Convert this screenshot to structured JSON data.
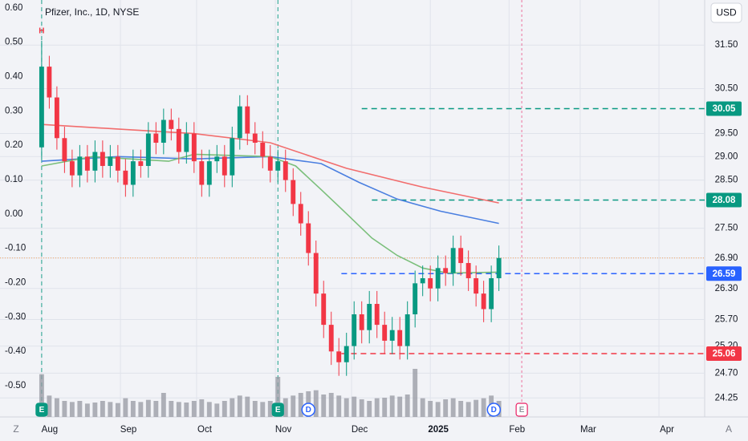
{
  "title": "Pfizer, Inc., 1D, NYSE",
  "currency_button": "USD",
  "corner_labels": {
    "left": "Z",
    "right": "A"
  },
  "chart_data": {
    "type": "candlestick",
    "log_scale": true,
    "grid": true,
    "up_color": "#089981",
    "down_color": "#f23645",
    "volume_color": "#9598a1",
    "high_marker": "H",
    "x": [
      0,
      3,
      6,
      9,
      12,
      15,
      18,
      21,
      24,
      27,
      30,
      33,
      36,
      39,
      42,
      45,
      48,
      51,
      54,
      57,
      60,
      63,
      66,
      69,
      72,
      75,
      78,
      81,
      84,
      87,
      90,
      93,
      96,
      99,
      102,
      105,
      108,
      111,
      114,
      117,
      120,
      123,
      126,
      129,
      132,
      135,
      138,
      141,
      144,
      147,
      150,
      153,
      156,
      159,
      162,
      165,
      168,
      171,
      174,
      177,
      180
    ],
    "open": [
      29.2,
      31.0,
      30.3,
      29.4,
      28.9,
      28.6,
      29.0,
      28.7,
      29.1,
      28.8,
      29.0,
      28.7,
      28.4,
      28.9,
      28.8,
      29.5,
      29.3,
      29.8,
      29.6,
      29.1,
      29.5,
      28.9,
      28.4,
      28.9,
      29.0,
      28.6,
      29.4,
      30.1,
      29.5,
      29.3,
      29.0,
      28.7,
      28.9,
      28.5,
      28.0,
      27.6,
      27.0,
      26.2,
      25.6,
      25.1,
      24.9,
      25.2,
      25.8,
      25.5,
      26.0,
      25.6,
      25.3,
      25.5,
      25.2,
      25.8,
      26.4,
      26.5,
      26.3,
      26.7,
      26.6,
      27.1,
      26.8,
      26.5,
      26.2,
      25.9,
      26.5
    ],
    "high": [
      31.6,
      31.25,
      30.55,
      29.65,
      29.15,
      29.25,
      29.25,
      29.35,
      29.35,
      29.25,
      29.25,
      28.95,
      29.15,
      29.15,
      29.75,
      29.75,
      30.05,
      30.05,
      29.85,
      29.75,
      29.75,
      29.15,
      29.15,
      29.25,
      29.25,
      29.65,
      30.35,
      30.35,
      29.75,
      29.55,
      29.25,
      29.15,
      29.15,
      28.75,
      28.25,
      27.85,
      27.25,
      26.45,
      25.85,
      25.35,
      25.45,
      26.05,
      26.05,
      26.25,
      26.25,
      25.85,
      25.75,
      25.75,
      26.05,
      26.65,
      26.75,
      26.75,
      26.95,
      26.95,
      27.35,
      27.35,
      27.05,
      26.75,
      26.45,
      26.75,
      27.15
    ],
    "low": [
      28.95,
      30.05,
      29.15,
      28.65,
      28.35,
      28.35,
      28.45,
      28.45,
      28.55,
      28.55,
      28.45,
      28.15,
      28.15,
      28.55,
      28.55,
      29.05,
      29.05,
      29.35,
      28.85,
      28.85,
      28.65,
      28.15,
      28.15,
      28.65,
      28.35,
      28.35,
      29.15,
      29.25,
      29.05,
      28.75,
      28.45,
      28.45,
      28.25,
      27.75,
      27.35,
      26.75,
      25.95,
      25.35,
      24.85,
      24.65,
      24.65,
      24.95,
      25.25,
      25.25,
      25.35,
      25.05,
      25.05,
      24.95,
      24.95,
      25.55,
      26.15,
      26.05,
      26.05,
      26.35,
      26.35,
      26.55,
      26.25,
      25.95,
      25.65,
      25.65,
      26.25
    ],
    "close": [
      31.0,
      30.3,
      29.4,
      28.9,
      28.6,
      29.0,
      28.7,
      29.1,
      28.8,
      29.0,
      28.7,
      28.4,
      28.9,
      28.8,
      29.5,
      29.3,
      29.8,
      29.6,
      29.1,
      29.5,
      28.9,
      28.4,
      28.9,
      29.0,
      28.6,
      29.4,
      30.1,
      29.5,
      29.3,
      29.0,
      28.7,
      28.9,
      28.5,
      28.0,
      27.6,
      27.0,
      26.2,
      25.6,
      25.1,
      24.9,
      25.2,
      25.8,
      25.5,
      26.0,
      25.6,
      25.3,
      25.5,
      25.2,
      25.8,
      26.4,
      26.5,
      26.3,
      26.7,
      26.6,
      27.1,
      26.8,
      26.5,
      26.2,
      25.9,
      26.5,
      26.9
    ],
    "volume": [
      80,
      40,
      35,
      30,
      28,
      30,
      25,
      27,
      30,
      28,
      26,
      35,
      30,
      28,
      32,
      30,
      45,
      30,
      28,
      27,
      30,
      33,
      28,
      25,
      30,
      35,
      40,
      38,
      30,
      28,
      30,
      75,
      35,
      40,
      45,
      48,
      50,
      42,
      45,
      40,
      35,
      38,
      33,
      30,
      35,
      36,
      40,
      38,
      42,
      90,
      35,
      30,
      28,
      33,
      35,
      30,
      28,
      32,
      35,
      40,
      30
    ],
    "volume_ylim": [
      0,
      150
    ],
    "moving_averages": [
      {
        "color": "#f26d6d",
        "x": [
          0,
          30,
          60,
          90,
          120,
          150,
          180
        ],
        "values": [
          29.7,
          29.6,
          29.5,
          29.3,
          28.75,
          28.35,
          28.02
        ]
      },
      {
        "color": "#4a7fe0",
        "x": [
          0,
          30,
          60,
          90,
          110,
          125,
          140,
          157,
          180
        ],
        "values": [
          28.9,
          29.0,
          28.95,
          29.0,
          28.85,
          28.45,
          28.1,
          27.85,
          27.6
        ]
      },
      {
        "color": "#7bbf7b",
        "x": [
          0,
          20,
          50,
          60,
          90,
          100,
          110,
          120,
          130,
          140,
          150,
          160,
          180
        ],
        "values": [
          28.8,
          29.0,
          28.9,
          29.05,
          29.0,
          28.8,
          28.3,
          27.8,
          27.3,
          26.95,
          26.7,
          26.6,
          26.62
        ]
      }
    ],
    "levels": [
      {
        "value": 30.05,
        "start": 126,
        "color": "#089981",
        "style": "dashed",
        "badge": true
      },
      {
        "value": 28.08,
        "start": 130,
        "color": "#089981",
        "style": "dashed",
        "badge": true
      },
      {
        "value": 26.59,
        "start": 118,
        "color": "#2962ff",
        "style": "dashed",
        "badge": true
      },
      {
        "value": 25.06,
        "start": 118,
        "color": "#f23645",
        "style": "dashed",
        "badge": true
      },
      {
        "value": 26.9,
        "start": -16.4,
        "color": "#f7a35c",
        "style": "dotted",
        "badge": false
      }
    ],
    "events": [
      {
        "label": "E",
        "x": 0,
        "color": "#089981",
        "future": false
      },
      {
        "label": "E",
        "x": 93,
        "color": "#089981",
        "future": false
      },
      {
        "label": "E",
        "x": 189,
        "color": "#e91e63",
        "future": true
      },
      {
        "label": "D",
        "x": 105,
        "color": "#2962ff",
        "future": false
      },
      {
        "label": "D",
        "x": 178,
        "color": "#2962ff",
        "future": false
      }
    ],
    "xlim": [
      -16.4,
      261
    ],
    "xticks": [
      {
        "value": 0,
        "label": "Aug"
      },
      {
        "value": 31,
        "label": "Sep"
      },
      {
        "value": 61,
        "label": "Oct"
      },
      {
        "value": 92,
        "label": "Nov"
      },
      {
        "value": 122,
        "label": "Dec"
      },
      {
        "value": 153,
        "label": "2025"
      },
      {
        "value": 184,
        "label": "Feb"
      },
      {
        "value": 212,
        "label": "Mar"
      },
      {
        "value": 243,
        "label": "Apr"
      }
    ],
    "ylim": [
      23.91,
      32.57
    ],
    "yticks": [
      {
        "value": 31.5,
        "label": "31.50"
      },
      {
        "value": 30.5,
        "label": "30.50"
      },
      {
        "value": 29.5,
        "label": "29.50"
      },
      {
        "value": 29,
        "label": "29.00"
      },
      {
        "value": 28.5,
        "label": "28.50"
      },
      {
        "value": 27.5,
        "label": "27.50"
      },
      {
        "value": 26.9,
        "label": "26.90"
      },
      {
        "value": 26.3,
        "label": "26.30"
      },
      {
        "value": 25.7,
        "label": "25.70"
      },
      {
        "value": 25.2,
        "label": "25.20"
      },
      {
        "value": 24.7,
        "label": "24.70"
      },
      {
        "value": 24.25,
        "label": "24.25"
      }
    ],
    "y2lim": [
      -0.591,
      0.623
    ],
    "y2ticks": [
      {
        "value": 0.6,
        "label": "0.60"
      },
      {
        "value": 0.5,
        "label": "0.50"
      },
      {
        "value": 0.4,
        "label": "0.40"
      },
      {
        "value": 0.3,
        "label": "0.30"
      },
      {
        "value": 0.2,
        "label": "0.20"
      },
      {
        "value": 0.1,
        "label": "0.10"
      },
      {
        "value": 0,
        "label": "0.00"
      },
      {
        "value": -0.1,
        "label": "-0.10"
      },
      {
        "value": -0.2,
        "label": "-0.20"
      },
      {
        "value": -0.3,
        "label": "-0.30"
      },
      {
        "value": -0.4,
        "label": "-0.40"
      },
      {
        "value": -0.5,
        "label": "-0.50"
      }
    ]
  }
}
